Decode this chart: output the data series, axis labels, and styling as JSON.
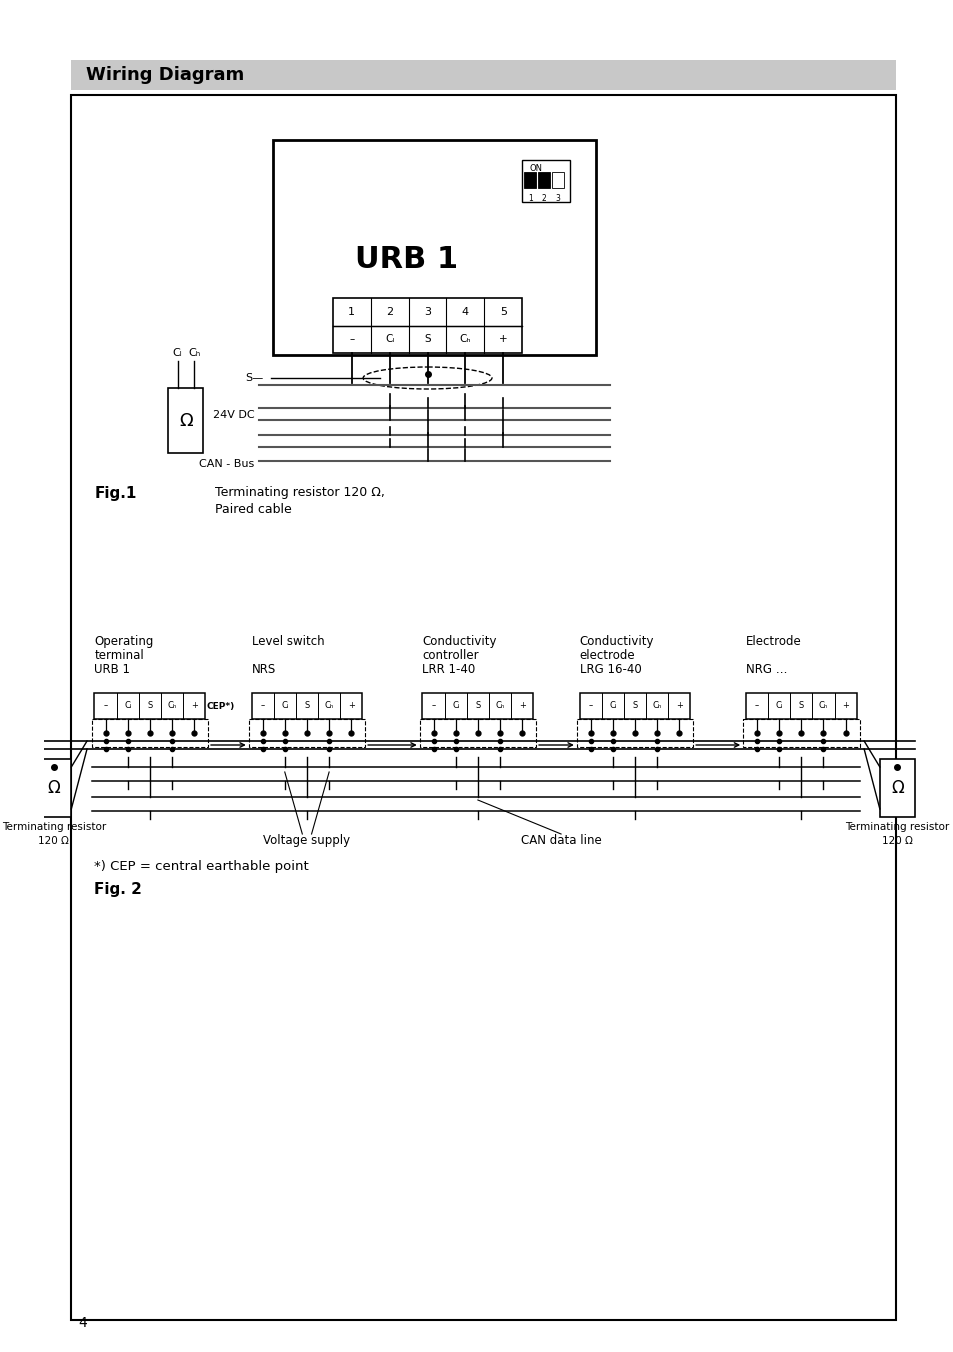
{
  "title": "Wiring Diagram",
  "title_bg": "#c8c8c8",
  "page_bg": "#ffffff",
  "fig1_label": "Fig.1",
  "fig1_note_line1": "Terminating resistor 120 Ω,",
  "fig1_note_line2": "Paired cable",
  "fig2_label": "Fig. 2",
  "fig2_note": "*) CEP = central earthable point",
  "urb1_label": "URB 1",
  "dc_label": "24V DC",
  "can_label": "CAN - Bus",
  "resistor_label": "Ω",
  "page_number": "4",
  "dev_labels": [
    [
      "Operating",
      "terminal",
      "URB 1"
    ],
    [
      "Level switch",
      "",
      "NRS"
    ],
    [
      "Conductivity",
      "controller",
      "LRR 1-40"
    ],
    [
      "Conductivity",
      "electrode",
      "LRG 16-40"
    ],
    [
      "Electrode",
      "",
      "NRG …"
    ]
  ],
  "term_labels": [
    "–",
    "Cₗ",
    "S",
    "Cₕ",
    "+"
  ],
  "voltage_supply_label": "Voltage supply",
  "can_data_label": "CAN data line",
  "term_res_label": "Terminating resistor",
  "ohm_val": "120 Ω"
}
